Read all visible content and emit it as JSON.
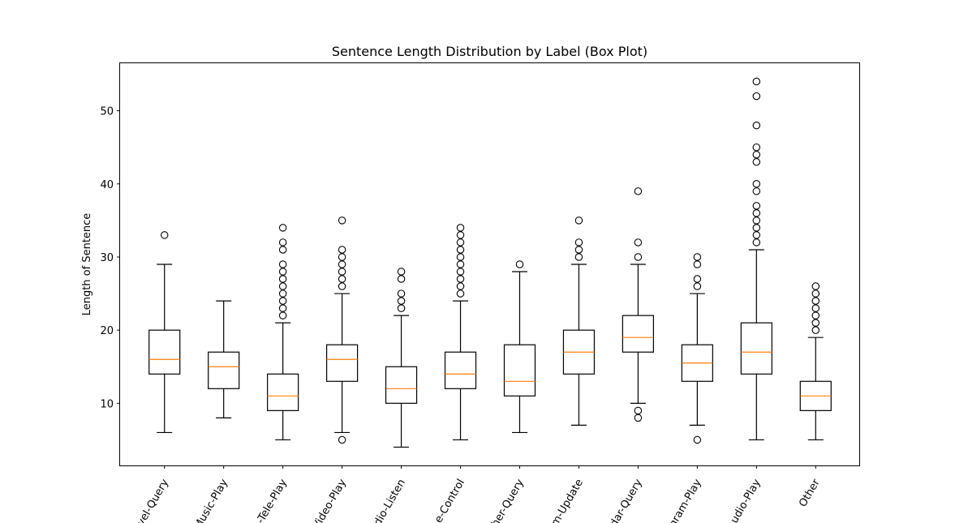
{
  "chart_data": {
    "type": "box",
    "title": "Sentence Length Distribution by Label (Box Plot)",
    "xlabel": "",
    "ylabel": "Length of Sentence",
    "ylim": [
      1.5,
      56.5
    ],
    "yticks": [
      10,
      20,
      30,
      40,
      50
    ],
    "x_tick_rotation_deg": 60,
    "grid": false,
    "colors": {
      "box": "#000000",
      "median": "#ff7f0e",
      "flier": "#000000"
    },
    "categories": [
      "Travel-Query",
      "Music-Play",
      "Tele-Play",
      "Video-Play",
      "Radio-Listen",
      "Home-Control",
      "Weather-Query",
      "Calendar-Update",
      "Calendar-Query",
      "Program-Play",
      "Audio-Play",
      "Other"
    ],
    "tick_labels": [
      "vel-Query",
      "Music-Play",
      "-Tele-Play",
      "Video-Play",
      "dio-Listen",
      "e-Control",
      "her-Query",
      "m-Update",
      "dar-Query",
      "gram-Play",
      "udio-Play",
      "Other"
    ],
    "boxes": [
      {
        "whisker_low": 6,
        "q1": 14,
        "median": 16,
        "q3": 20,
        "whisker_high": 29,
        "fliers": [
          33
        ]
      },
      {
        "whisker_low": 8,
        "q1": 12,
        "median": 15,
        "q3": 17,
        "whisker_high": 24,
        "fliers": []
      },
      {
        "whisker_low": 5,
        "q1": 9,
        "median": 11,
        "q3": 14,
        "whisker_high": 21,
        "fliers": [
          22,
          23,
          24,
          25,
          26,
          27,
          28,
          29,
          31,
          32,
          34
        ]
      },
      {
        "whisker_low": 6,
        "q1": 13,
        "median": 16,
        "q3": 18,
        "whisker_high": 25,
        "fliers": [
          5,
          26,
          27,
          28,
          29,
          30,
          31,
          35
        ]
      },
      {
        "whisker_low": 4,
        "q1": 10,
        "median": 12,
        "q3": 15,
        "whisker_high": 22,
        "fliers": [
          23,
          24,
          25,
          27,
          28
        ]
      },
      {
        "whisker_low": 5,
        "q1": 12,
        "median": 14,
        "q3": 17,
        "whisker_high": 24,
        "fliers": [
          25,
          26,
          27,
          28,
          29,
          30,
          31,
          32,
          33,
          34
        ]
      },
      {
        "whisker_low": 6,
        "q1": 11,
        "median": 13,
        "q3": 18,
        "whisker_high": 28,
        "fliers": [
          29
        ]
      },
      {
        "whisker_low": 7,
        "q1": 14,
        "median": 17,
        "q3": 20,
        "whisker_high": 29,
        "fliers": [
          30,
          31,
          32,
          35
        ]
      },
      {
        "whisker_low": 10,
        "q1": 17,
        "median": 19,
        "q3": 22,
        "whisker_high": 29,
        "fliers": [
          8,
          9,
          30,
          32,
          39
        ]
      },
      {
        "whisker_low": 7,
        "q1": 13,
        "median": 15.5,
        "q3": 18,
        "whisker_high": 25,
        "fliers": [
          5,
          26,
          27,
          29,
          30
        ]
      },
      {
        "whisker_low": 5,
        "q1": 14,
        "median": 17,
        "q3": 21,
        "whisker_high": 31,
        "fliers": [
          32,
          33,
          34,
          35,
          36,
          37,
          39,
          40,
          43,
          44,
          45,
          48,
          52,
          54
        ]
      },
      {
        "whisker_low": 5,
        "q1": 9,
        "median": 11,
        "q3": 13,
        "whisker_high": 19,
        "fliers": [
          20,
          21,
          22,
          23,
          24,
          25,
          26
        ]
      }
    ]
  }
}
